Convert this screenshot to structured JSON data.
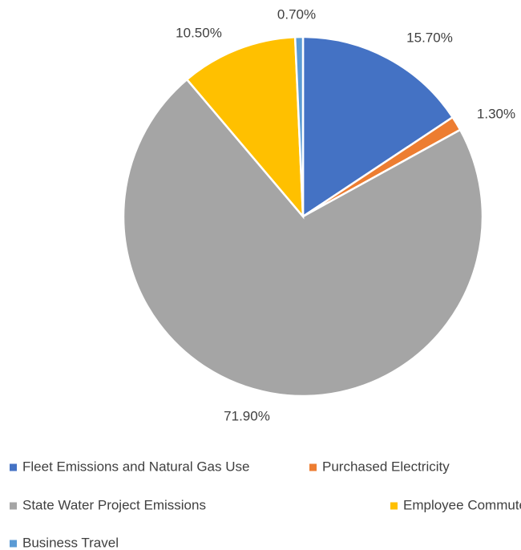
{
  "chart_data": {
    "type": "pie",
    "categories": [
      "Fleet Emissions and Natural Gas Use",
      "Purchased Electricity",
      "State Water Project Emissions",
      "Employee Commute",
      "Business Travel"
    ],
    "values": [
      15.7,
      1.3,
      71.9,
      10.5,
      0.7
    ],
    "value_labels": [
      "15.70%",
      "1.30%",
      "71.90%",
      "10.50%",
      "0.70%"
    ],
    "colors": [
      "#4472c4",
      "#ed7d31",
      "#a5a5a5",
      "#ffc000",
      "#5b9bd5"
    ]
  }
}
